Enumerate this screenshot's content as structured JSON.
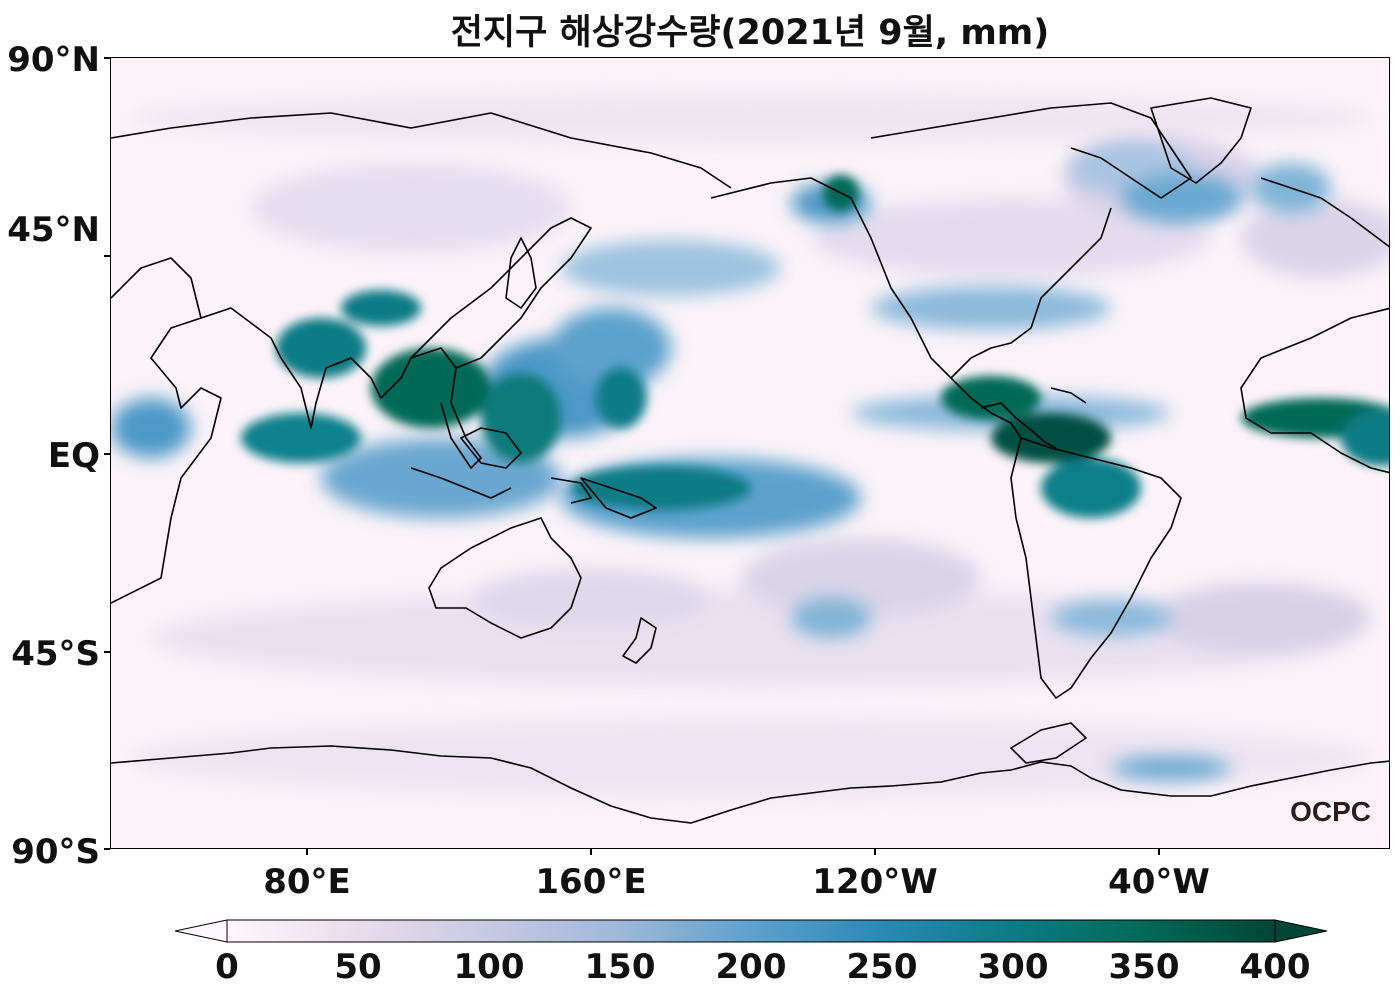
{
  "title": "전지구 해상강수량(2021년 9월, mm)",
  "watermark": "OCPC",
  "y_ticks": [
    "90°N",
    "45°N",
    "EQ",
    "45°S",
    "90°S"
  ],
  "x_ticks": [
    "80°E",
    "160°E",
    "120°W",
    "40°W"
  ],
  "colorbar": {
    "ticks": [
      "0",
      "50",
      "100",
      "150",
      "200",
      "250",
      "300",
      "350",
      "400"
    ],
    "colors": [
      "#fff7fb",
      "#e9dcec",
      "#c8c9e2",
      "#9fb8d9",
      "#5ea1cd",
      "#2c88b5",
      "#0a7c86",
      "#016956",
      "#014636"
    ],
    "extend": "both",
    "colormap": "PuBuGn"
  },
  "map": {
    "projection": "PlateCarree",
    "central_longitude": "center ~ 180",
    "coastline_color": "#000000"
  }
}
